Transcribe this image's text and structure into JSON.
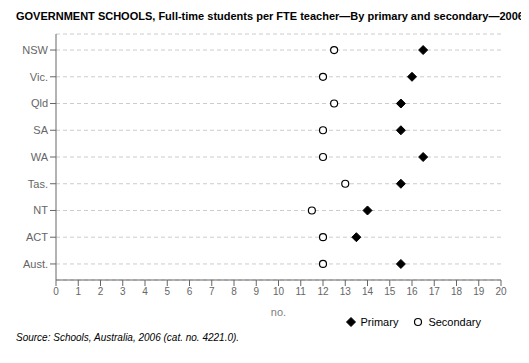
{
  "chart_data": {
    "type": "scatter",
    "title": "GOVERNMENT SCHOOLS, Full-time students per FTE teacher—By primary and secondary—2006",
    "categories": [
      "NSW",
      "Vic.",
      "Qld",
      "SA",
      "WA",
      "Tas.",
      "NT",
      "ACT",
      "Aust."
    ],
    "series": [
      {
        "name": "Primary",
        "color": "#000000",
        "marker": "diamond",
        "values": [
          16.5,
          16.0,
          15.5,
          15.5,
          16.5,
          15.5,
          14.0,
          13.5,
          15.5
        ]
      },
      {
        "name": "Secondary",
        "color": "#000000",
        "marker": "open_circle",
        "values": [
          12.5,
          12.0,
          12.5,
          12.0,
          12.0,
          13.0,
          11.5,
          12.0,
          12.0
        ]
      }
    ],
    "xlabel": "no.",
    "xlim": [
      0,
      20
    ],
    "xticks": [
      0,
      1,
      2,
      3,
      4,
      5,
      6,
      7,
      8,
      9,
      10,
      11,
      12,
      13,
      14,
      15,
      16,
      17,
      18,
      19,
      20
    ],
    "grid": true,
    "legend": "lower right",
    "source": "Source: Schools, Australia, 2006 (cat. no. 4221.0)."
  }
}
